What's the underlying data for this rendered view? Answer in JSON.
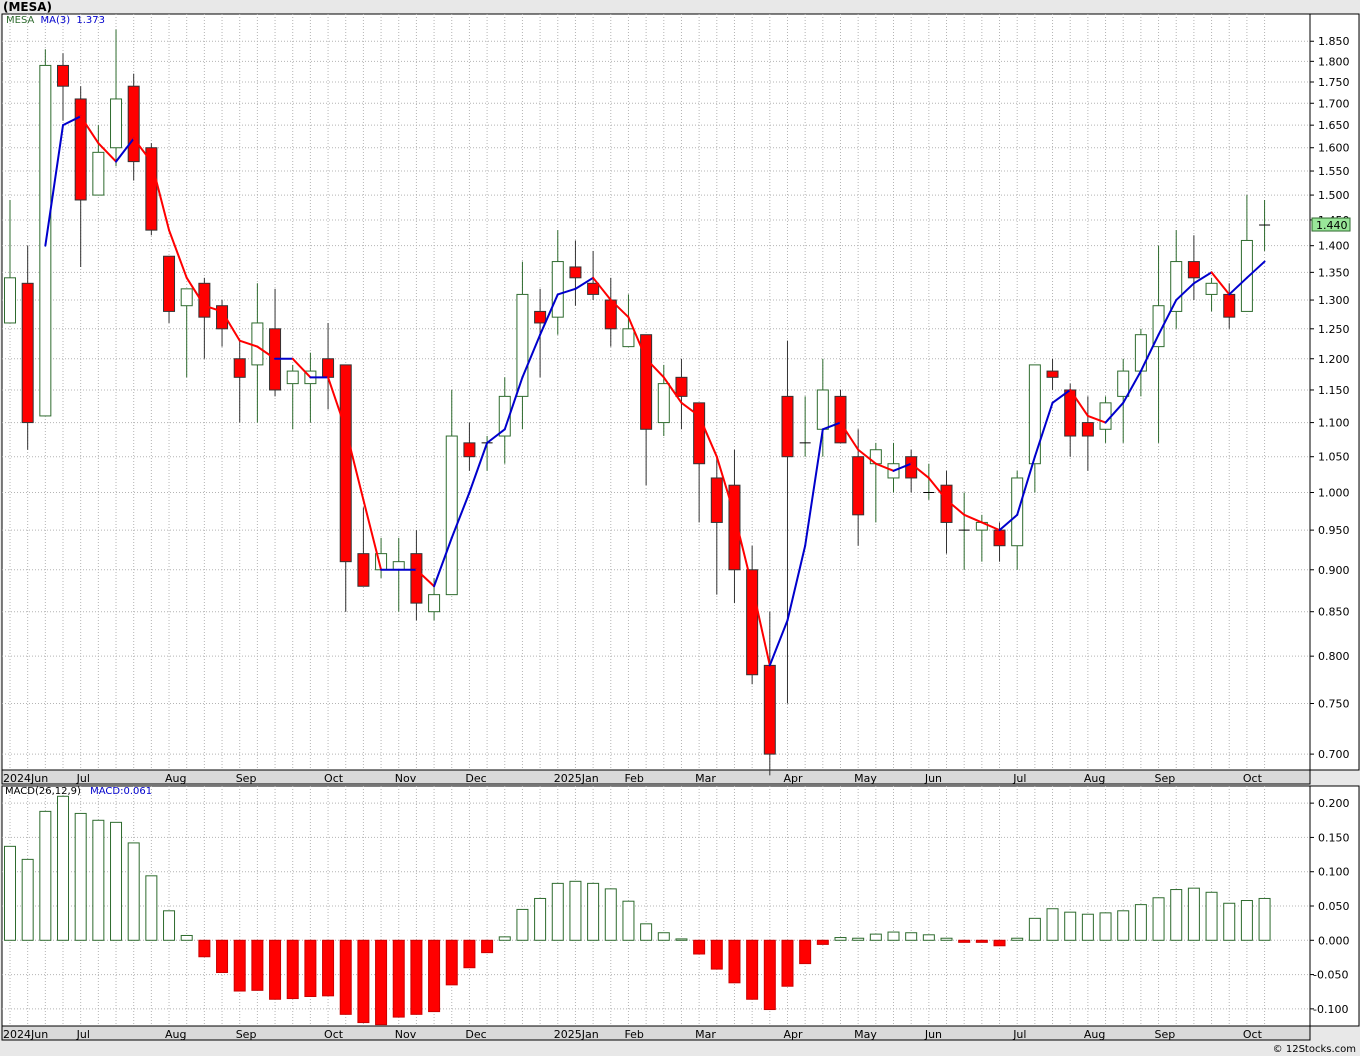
{
  "title": "(MESA)",
  "credit": "© 12Stocks.com",
  "colors": {
    "up": "#2e6b2e",
    "down": "#ff0000",
    "ma_up": "#0000cc",
    "ma_down": "#ff0000",
    "grid": "#b4b4b4",
    "price_badge": "#99e699",
    "macd_pos": "#2e6b2e",
    "macd_neg": "#ff0000"
  },
  "chart_data": [
    {
      "type": "candlestick",
      "legend": [
        {
          "text": "MESA",
          "color": "#2e6b2e"
        },
        {
          "text": "MA(3)",
          "color": "#0000cc"
        },
        {
          "text": "1.373",
          "color": "#0000cc"
        }
      ],
      "last_price": "1.440",
      "y_scale": "log",
      "ylim": [
        0.685,
        1.92
      ],
      "yticks": [
        "1.850",
        "1.800",
        "1.750",
        "1.700",
        "1.650",
        "1.600",
        "1.550",
        "1.500",
        "1.450",
        "1.400",
        "1.350",
        "1.300",
        "1.250",
        "1.200",
        "1.150",
        "1.100",
        "1.050",
        "1.000",
        "0.950",
        "0.900",
        "0.850",
        "0.800",
        "0.750",
        "0.700"
      ],
      "x_labels": [
        {
          "label": "2024Jun",
          "index": -0.5
        },
        {
          "label": "Jul",
          "index": 4
        },
        {
          "label": "Aug",
          "index": 9
        },
        {
          "label": "Sep",
          "index": 13
        },
        {
          "label": "Oct",
          "index": 18
        },
        {
          "label": "Nov",
          "index": 22
        },
        {
          "label": "Dec",
          "index": 26
        },
        {
          "label": "2025Jan",
          "index": 31
        },
        {
          "label": "Feb",
          "index": 35
        },
        {
          "label": "Mar",
          "index": 39
        },
        {
          "label": "Apr",
          "index": 44
        },
        {
          "label": "May",
          "index": 48
        },
        {
          "label": "Jun",
          "index": 52
        },
        {
          "label": "Jul",
          "index": 57
        },
        {
          "label": "Aug",
          "index": 61
        },
        {
          "label": "Sep",
          "index": 65
        },
        {
          "label": "Oct",
          "index": 70
        }
      ],
      "candles": [
        {
          "o": 1.26,
          "h": 1.49,
          "l": 1.26,
          "c": 1.34
        },
        {
          "o": 1.33,
          "h": 1.4,
          "l": 1.06,
          "c": 1.1
        },
        {
          "o": 1.11,
          "h": 1.83,
          "l": 1.11,
          "c": 1.79
        },
        {
          "o": 1.79,
          "h": 1.82,
          "l": 1.66,
          "c": 1.74
        },
        {
          "o": 1.71,
          "h": 1.74,
          "l": 1.36,
          "c": 1.49
        },
        {
          "o": 1.5,
          "h": 1.65,
          "l": 1.5,
          "c": 1.59
        },
        {
          "o": 1.6,
          "h": 1.88,
          "l": 1.56,
          "c": 1.71
        },
        {
          "o": 1.74,
          "h": 1.77,
          "l": 1.53,
          "c": 1.57
        },
        {
          "o": 1.6,
          "h": 1.61,
          "l": 1.42,
          "c": 1.43
        },
        {
          "o": 1.38,
          "h": 1.38,
          "l": 1.26,
          "c": 1.28
        },
        {
          "o": 1.29,
          "h": 1.32,
          "l": 1.17,
          "c": 1.32
        },
        {
          "o": 1.33,
          "h": 1.34,
          "l": 1.2,
          "c": 1.27
        },
        {
          "o": 1.29,
          "h": 1.3,
          "l": 1.22,
          "c": 1.25
        },
        {
          "o": 1.2,
          "h": 1.23,
          "l": 1.1,
          "c": 1.17
        },
        {
          "o": 1.19,
          "h": 1.33,
          "l": 1.1,
          "c": 1.26
        },
        {
          "o": 1.25,
          "h": 1.32,
          "l": 1.14,
          "c": 1.15
        },
        {
          "o": 1.16,
          "h": 1.19,
          "l": 1.09,
          "c": 1.18
        },
        {
          "o": 1.16,
          "h": 1.21,
          "l": 1.1,
          "c": 1.18
        },
        {
          "o": 1.2,
          "h": 1.26,
          "l": 1.12,
          "c": 1.17
        },
        {
          "o": 1.19,
          "h": 1.19,
          "l": 0.85,
          "c": 0.91
        },
        {
          "o": 0.92,
          "h": 0.98,
          "l": 0.88,
          "c": 0.88
        },
        {
          "o": 0.9,
          "h": 0.94,
          "l": 0.89,
          "c": 0.92
        },
        {
          "o": 0.9,
          "h": 0.94,
          "l": 0.85,
          "c": 0.91
        },
        {
          "o": 0.92,
          "h": 0.95,
          "l": 0.84,
          "c": 0.86
        },
        {
          "o": 0.85,
          "h": 0.89,
          "l": 0.84,
          "c": 0.87
        },
        {
          "o": 0.87,
          "h": 1.15,
          "l": 0.87,
          "c": 1.08
        },
        {
          "o": 1.07,
          "h": 1.1,
          "l": 1.03,
          "c": 1.05
        },
        {
          "o": 1.07,
          "h": 1.08,
          "l": 1.03,
          "c": 1.07
        },
        {
          "o": 1.08,
          "h": 1.17,
          "l": 1.04,
          "c": 1.14
        },
        {
          "o": 1.14,
          "h": 1.37,
          "l": 1.09,
          "c": 1.31
        },
        {
          "o": 1.28,
          "h": 1.32,
          "l": 1.17,
          "c": 1.26
        },
        {
          "o": 1.27,
          "h": 1.43,
          "l": 1.24,
          "c": 1.37
        },
        {
          "o": 1.36,
          "h": 1.41,
          "l": 1.29,
          "c": 1.34
        },
        {
          "o": 1.33,
          "h": 1.39,
          "l": 1.3,
          "c": 1.31
        },
        {
          "o": 1.3,
          "h": 1.34,
          "l": 1.22,
          "c": 1.25
        },
        {
          "o": 1.22,
          "h": 1.31,
          "l": 1.22,
          "c": 1.25
        },
        {
          "o": 1.24,
          "h": 1.24,
          "l": 1.01,
          "c": 1.09
        },
        {
          "o": 1.1,
          "h": 1.19,
          "l": 1.08,
          "c": 1.16
        },
        {
          "o": 1.17,
          "h": 1.2,
          "l": 1.09,
          "c": 1.14
        },
        {
          "o": 1.13,
          "h": 1.13,
          "l": 0.96,
          "c": 1.04
        },
        {
          "o": 1.02,
          "h": 1.05,
          "l": 0.87,
          "c": 0.96
        },
        {
          "o": 1.01,
          "h": 1.06,
          "l": 0.86,
          "c": 0.9
        },
        {
          "o": 0.9,
          "h": 0.93,
          "l": 0.77,
          "c": 0.78
        },
        {
          "o": 0.79,
          "h": 0.85,
          "l": 0.68,
          "c": 0.7
        },
        {
          "o": 1.14,
          "h": 1.23,
          "l": 0.75,
          "c": 1.05
        },
        {
          "o": 1.07,
          "h": 1.14,
          "l": 1.05,
          "c": 1.07
        },
        {
          "o": 1.09,
          "h": 1.2,
          "l": 1.05,
          "c": 1.15
        },
        {
          "o": 1.14,
          "h": 1.15,
          "l": 1.07,
          "c": 1.07
        },
        {
          "o": 1.05,
          "h": 1.09,
          "l": 0.93,
          "c": 0.97
        },
        {
          "o": 1.04,
          "h": 1.07,
          "l": 0.96,
          "c": 1.06
        },
        {
          "o": 1.02,
          "h": 1.07,
          "l": 1.0,
          "c": 1.04
        },
        {
          "o": 1.05,
          "h": 1.06,
          "l": 1.0,
          "c": 1.02
        },
        {
          "o": 1.0,
          "h": 1.04,
          "l": 0.99,
          "c": 1.0
        },
        {
          "o": 1.01,
          "h": 1.03,
          "l": 0.92,
          "c": 0.96
        },
        {
          "o": 0.95,
          "h": 1.0,
          "l": 0.9,
          "c": 0.95
        },
        {
          "o": 0.95,
          "h": 0.97,
          "l": 0.91,
          "c": 0.96
        },
        {
          "o": 0.95,
          "h": 0.96,
          "l": 0.91,
          "c": 0.93
        },
        {
          "o": 0.93,
          "h": 1.03,
          "l": 0.9,
          "c": 1.02
        },
        {
          "o": 1.04,
          "h": 1.19,
          "l": 1.0,
          "c": 1.19
        },
        {
          "o": 1.18,
          "h": 1.2,
          "l": 1.15,
          "c": 1.17
        },
        {
          "o": 1.15,
          "h": 1.16,
          "l": 1.05,
          "c": 1.08
        },
        {
          "o": 1.1,
          "h": 1.14,
          "l": 1.03,
          "c": 1.08
        },
        {
          "o": 1.09,
          "h": 1.14,
          "l": 1.07,
          "c": 1.13
        },
        {
          "o": 1.14,
          "h": 1.2,
          "l": 1.07,
          "c": 1.18
        },
        {
          "o": 1.18,
          "h": 1.25,
          "l": 1.14,
          "c": 1.24
        },
        {
          "o": 1.22,
          "h": 1.4,
          "l": 1.07,
          "c": 1.29
        },
        {
          "o": 1.28,
          "h": 1.43,
          "l": 1.25,
          "c": 1.37
        },
        {
          "o": 1.37,
          "h": 1.42,
          "l": 1.3,
          "c": 1.34
        },
        {
          "o": 1.31,
          "h": 1.34,
          "l": 1.28,
          "c": 1.33
        },
        {
          "o": 1.31,
          "h": 1.33,
          "l": 1.25,
          "c": 1.27
        },
        {
          "o": 1.28,
          "h": 1.5,
          "l": 1.28,
          "c": 1.41
        },
        {
          "o": 1.44,
          "h": 1.49,
          "l": 1.39,
          "c": 1.44
        }
      ],
      "ma3": [
        null,
        null,
        1.4,
        1.65,
        1.67,
        1.61,
        1.57,
        1.62,
        1.57,
        1.43,
        1.34,
        1.29,
        1.28,
        1.23,
        1.22,
        1.2,
        1.2,
        1.17,
        1.17,
        1.09,
        0.99,
        0.9,
        0.9,
        0.9,
        0.88,
        0.94,
        1.0,
        1.07,
        1.09,
        1.17,
        1.24,
        1.31,
        1.32,
        1.34,
        1.3,
        1.27,
        1.2,
        1.17,
        1.13,
        1.11,
        1.05,
        0.97,
        0.88,
        0.79,
        0.84,
        0.93,
        1.09,
        1.1,
        1.06,
        1.04,
        1.03,
        1.04,
        1.02,
        0.99,
        0.97,
        0.96,
        0.95,
        0.97,
        1.05,
        1.13,
        1.15,
        1.11,
        1.1,
        1.13,
        1.18,
        1.24,
        1.3,
        1.33,
        1.35,
        1.31,
        1.34,
        1.37
      ]
    },
    {
      "type": "bar",
      "legend": [
        {
          "text": "MACD(26,12,9)",
          "color": "#000000"
        },
        {
          "text": "MACD:0.061",
          "color": "#0000cc"
        }
      ],
      "ylim": [
        -0.125,
        0.225
      ],
      "yticks": [
        "0.200",
        "0.150",
        "0.100",
        "0.050",
        "0.000",
        "-0.050",
        "-0.100"
      ],
      "x_labels": [
        {
          "label": "2024Jun",
          "index": -0.5
        },
        {
          "label": "Jul",
          "index": 4
        },
        {
          "label": "Aug",
          "index": 9
        },
        {
          "label": "Sep",
          "index": 13
        },
        {
          "label": "Oct",
          "index": 18
        },
        {
          "label": "Nov",
          "index": 22
        },
        {
          "label": "Dec",
          "index": 26
        },
        {
          "label": "2025Jan",
          "index": 31
        },
        {
          "label": "Feb",
          "index": 35
        },
        {
          "label": "Mar",
          "index": 39
        },
        {
          "label": "Apr",
          "index": 44
        },
        {
          "label": "May",
          "index": 48
        },
        {
          "label": "Jun",
          "index": 52
        },
        {
          "label": "Jul",
          "index": 57
        },
        {
          "label": "Aug",
          "index": 61
        },
        {
          "label": "Sep",
          "index": 65
        },
        {
          "label": "Oct",
          "index": 70
        }
      ],
      "values": [
        0.137,
        0.118,
        0.188,
        0.21,
        0.185,
        0.175,
        0.172,
        0.142,
        0.094,
        0.043,
        0.007,
        -0.024,
        -0.047,
        -0.074,
        -0.073,
        -0.086,
        -0.085,
        -0.082,
        -0.081,
        -0.108,
        -0.12,
        -0.123,
        -0.112,
        -0.108,
        -0.104,
        -0.065,
        -0.04,
        -0.018,
        0.005,
        0.045,
        0.061,
        0.083,
        0.086,
        0.083,
        0.075,
        0.057,
        0.024,
        0.011,
        0.002,
        -0.02,
        -0.042,
        -0.062,
        -0.086,
        -0.101,
        -0.067,
        -0.034,
        -0.006,
        0.004,
        0.003,
        0.009,
        0.012,
        0.011,
        0.008,
        0.003,
        -0.003,
        -0.003,
        -0.008,
        0.003,
        0.032,
        0.046,
        0.041,
        0.038,
        0.04,
        0.043,
        0.052,
        0.062,
        0.074,
        0.076,
        0.07,
        0.054,
        0.058,
        0.061
      ]
    }
  ]
}
